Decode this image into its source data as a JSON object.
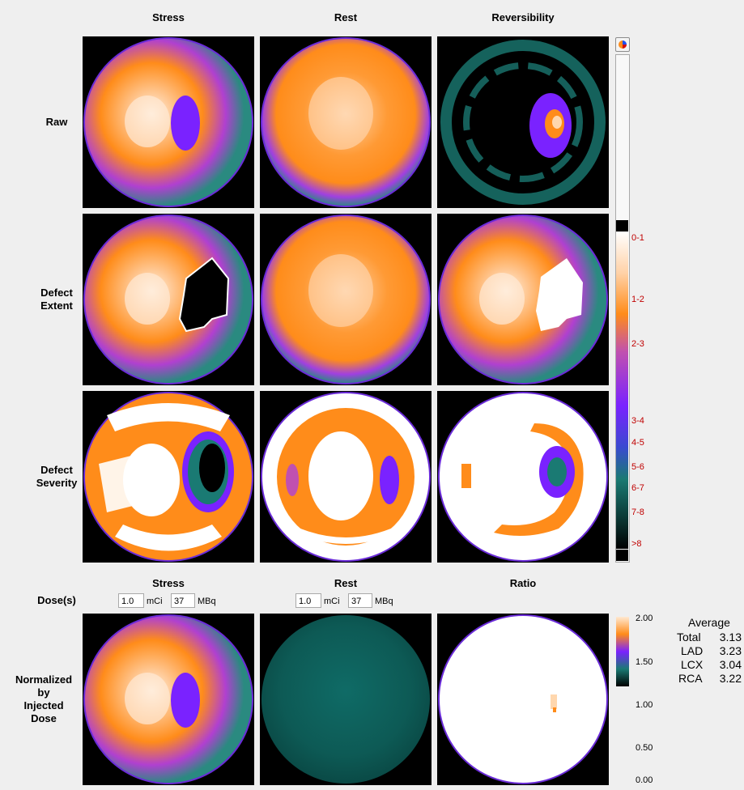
{
  "columns": [
    "Stress",
    "Rest",
    "Reversibility"
  ],
  "rows": [
    {
      "label_lines": [
        "Raw"
      ]
    },
    {
      "label_lines": [
        "Defect",
        "Extent"
      ]
    },
    {
      "label_lines": [
        "Defect",
        "Severity"
      ]
    }
  ],
  "severity_scale": {
    "ticks": [
      "0-1",
      "1-2",
      "2-3",
      "3-4",
      "4-5",
      "5-6",
      "6-7",
      "7-8",
      ">8"
    ]
  },
  "dose_section": {
    "columns": [
      "Stress",
      "Rest",
      "Ratio"
    ],
    "dose_label": "Dose(s)",
    "row_label_lines": [
      "Normalized",
      "by",
      "Injected",
      "Dose"
    ],
    "stress": {
      "mci": "1.0",
      "mbq": "37"
    },
    "rest": {
      "mci": "1.0",
      "mbq": "37"
    },
    "units": {
      "mci": "mCi",
      "mbq": "MBq"
    }
  },
  "ratio_scale": {
    "top_ticks": [
      "2.00",
      "1.50"
    ],
    "bottom_ticks": [
      "1.00",
      "0.50",
      "0.00"
    ]
  },
  "average": {
    "title": "Average",
    "rows": [
      {
        "name": "Total",
        "value": "3.13"
      },
      {
        "name": "LAD",
        "value": "3.23"
      },
      {
        "name": "LCX",
        "value": "3.04"
      },
      {
        "name": "RCA",
        "value": "3.22"
      }
    ]
  },
  "colors": {
    "orange": "#ff8c1a",
    "purple": "#8a2be2",
    "teal": "#1a7a73",
    "white": "#ffffff",
    "black": "#000000"
  }
}
